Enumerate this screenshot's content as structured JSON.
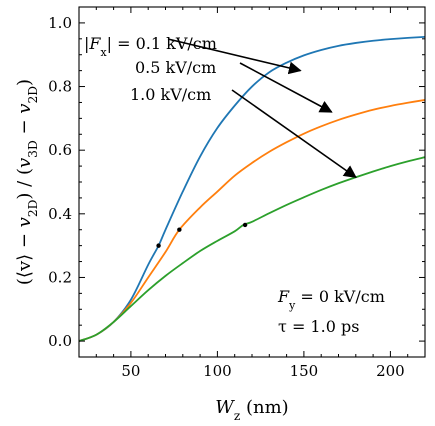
{
  "chart_data": {
    "type": "line",
    "title": "",
    "xlabel": "W_z (nm)",
    "ylabel": "(⟨v⟩ − v_2D) / (v_3D − v_2D)",
    "xlim": [
      20,
      220
    ],
    "ylim": [
      -0.05,
      1.05
    ],
    "xticks": [
      50,
      100,
      150,
      200
    ],
    "yticks": [
      0.0,
      0.2,
      0.4,
      0.6,
      0.8,
      1.0
    ],
    "xtick_labels": [
      "50",
      "100",
      "150",
      "200"
    ],
    "ytick_labels": [
      "0.0",
      "0.2",
      "0.4",
      "0.6",
      "0.8",
      "1.0"
    ],
    "grid": false,
    "series": [
      {
        "name": "|Fx| = 0.1 kV/cm",
        "color": "#1f77b4",
        "x": [
          20,
          30,
          40,
          50,
          60,
          66,
          70,
          80,
          90,
          100,
          110,
          120,
          130,
          140,
          150,
          160,
          170,
          180,
          190,
          200,
          210,
          220
        ],
        "y": [
          0.0,
          0.02,
          0.06,
          0.13,
          0.24,
          0.3,
          0.35,
          0.47,
          0.58,
          0.67,
          0.74,
          0.8,
          0.845,
          0.875,
          0.898,
          0.915,
          0.928,
          0.937,
          0.944,
          0.949,
          0.953,
          0.956
        ]
      },
      {
        "name": "0.5 kV/cm",
        "color": "#ff7f0e",
        "x": [
          20,
          30,
          40,
          50,
          60,
          70,
          78,
          90,
          100,
          110,
          120,
          130,
          140,
          150,
          160,
          170,
          180,
          190,
          200,
          210,
          220
        ],
        "y": [
          0.0,
          0.02,
          0.06,
          0.12,
          0.2,
          0.28,
          0.35,
          0.42,
          0.47,
          0.52,
          0.56,
          0.595,
          0.625,
          0.652,
          0.675,
          0.695,
          0.712,
          0.727,
          0.739,
          0.749,
          0.758
        ]
      },
      {
        "name": "1.0 kV/cm",
        "color": "#2ca02c",
        "x": [
          20,
          30,
          40,
          50,
          60,
          70,
          80,
          90,
          100,
          110,
          115,
          120,
          130,
          140,
          150,
          160,
          170,
          180,
          190,
          200,
          210,
          220
        ],
        "y": [
          0.0,
          0.02,
          0.06,
          0.11,
          0.16,
          0.205,
          0.245,
          0.283,
          0.315,
          0.345,
          0.365,
          0.375,
          0.402,
          0.428,
          0.452,
          0.475,
          0.496,
          0.515,
          0.533,
          0.55,
          0.565,
          0.578
        ]
      }
    ],
    "markers": [
      {
        "x": 66,
        "y": 0.3
      },
      {
        "x": 78,
        "y": 0.35
      },
      {
        "x": 116,
        "y": 0.365
      }
    ],
    "annotations": [
      {
        "text": "|F_x| = 0.1 kV/cm",
        "arrow_to": {
          "x": 148,
          "y": 0.85
        }
      },
      {
        "text": "0.5 kV/cm",
        "arrow_to": {
          "x": 166,
          "y": 0.72
        }
      },
      {
        "text": "1.0 kV/cm",
        "arrow_to": {
          "x": 180,
          "y": 0.515
        }
      }
    ],
    "inset_text": [
      "F_y = 0 kV/cm",
      "τ = 1.0 ps"
    ]
  }
}
